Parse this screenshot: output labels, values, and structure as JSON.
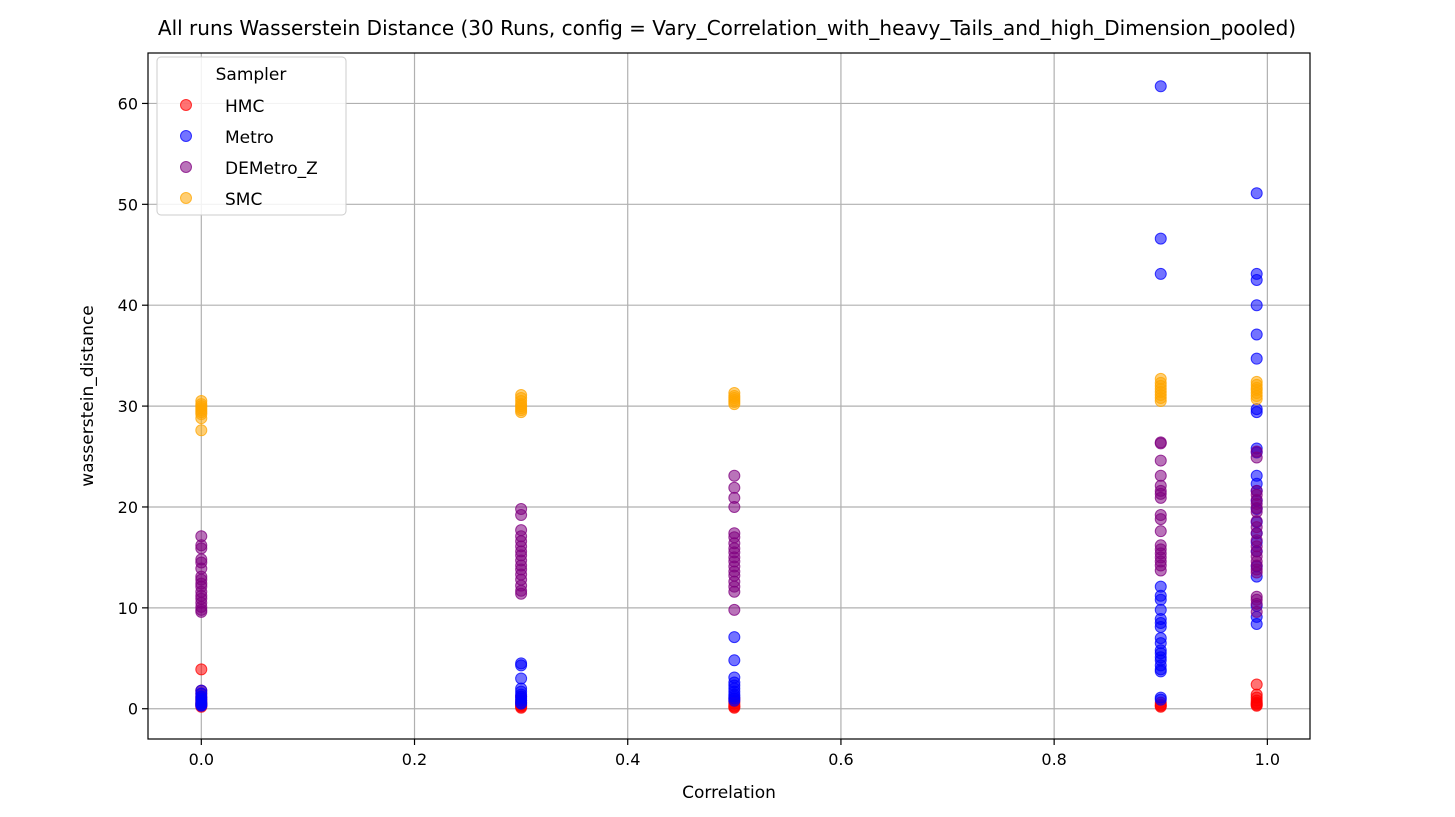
{
  "chart_data": {
    "type": "scatter",
    "title": "All runs Wasserstein Distance (30 Runs, config = Vary_Correlation_with_heavy_Tails_and_high_Dimension_pooled)",
    "xlabel": "Correlation",
    "ylabel": "wasserstein_distance",
    "xlim": [
      -0.05,
      1.04
    ],
    "ylim": [
      -3,
      65
    ],
    "xticks": [
      0.0,
      0.2,
      0.4,
      0.6,
      0.8,
      1.0
    ],
    "xtick_labels": [
      "0.0",
      "0.2",
      "0.4",
      "0.6",
      "0.8",
      "1.0"
    ],
    "yticks": [
      0,
      10,
      20,
      30,
      40,
      50,
      60
    ],
    "ytick_labels": [
      "0",
      "10",
      "20",
      "30",
      "40",
      "50",
      "60"
    ],
    "grid": true,
    "legend": {
      "title": "Sampler",
      "position": "top-left"
    },
    "series": [
      {
        "name": "HMC",
        "color": "#ff0000",
        "points": [
          {
            "x": 0.0,
            "y": [
              3.9,
              1.8,
              1.5,
              1.2,
              1.0,
              0.8,
              0.6,
              0.5,
              0.4,
              0.3,
              0.2
            ]
          },
          {
            "x": 0.3,
            "y": [
              1.2,
              0.8,
              0.6,
              0.4,
              0.3,
              0.2,
              0.1
            ]
          },
          {
            "x": 0.5,
            "y": [
              1.0,
              0.7,
              0.5,
              0.3,
              0.2,
              0.1
            ]
          },
          {
            "x": 0.9,
            "y": [
              0.6,
              0.4,
              0.3,
              0.2
            ]
          },
          {
            "x": 0.99,
            "y": [
              2.4,
              1.4,
              1.1,
              0.8,
              0.6,
              0.5,
              0.4,
              0.3
            ]
          }
        ]
      },
      {
        "name": "Metro",
        "color": "#0000ff",
        "points": [
          {
            "x": 0.0,
            "y": [
              1.8,
              1.5,
              1.2,
              1.0,
              0.8,
              0.6,
              0.5,
              0.4,
              0.3
            ]
          },
          {
            "x": 0.3,
            "y": [
              4.5,
              4.3,
              3.0,
              2.0,
              1.7,
              1.4,
              1.2,
              1.0,
              0.8,
              0.6,
              0.5
            ]
          },
          {
            "x": 0.5,
            "y": [
              7.1,
              4.8,
              3.1,
              2.6,
              2.3,
              2.0,
              1.7,
              1.4,
              1.2,
              1.0,
              0.8
            ]
          },
          {
            "x": 0.9,
            "y": [
              61.7,
              46.6,
              43.1,
              12.1,
              11.2,
              10.8,
              9.8,
              8.9,
              8.5,
              8.1,
              7.0,
              6.5,
              5.8,
              5.5,
              5.1,
              4.8,
              4.3,
              3.9,
              3.7,
              1.1,
              0.9
            ]
          },
          {
            "x": 0.99,
            "y": [
              51.1,
              43.1,
              42.5,
              40.0,
              37.1,
              34.7,
              29.7,
              29.4,
              25.8,
              25.4,
              23.1,
              22.3,
              21.6,
              20.6,
              19.8,
              18.5,
              17.4,
              16.5,
              15.6,
              14.1,
              13.1,
              10.2,
              9.1,
              8.4
            ]
          }
        ]
      },
      {
        "name": "DEMetro_Z",
        "color": "#800080",
        "points": [
          {
            "x": 0.0,
            "y": [
              17.1,
              16.2,
              15.9,
              14.8,
              14.5,
              13.9,
              13.1,
              12.8,
              12.4,
              12.1,
              11.6,
              11.2,
              10.9,
              10.5,
              10.1,
              9.8,
              9.6
            ]
          },
          {
            "x": 0.3,
            "y": [
              19.8,
              19.2,
              17.7,
              17.1,
              16.6,
              16.1,
              15.6,
              15.2,
              14.7,
              14.2,
              13.8,
              13.3,
              12.8,
              12.2,
              11.7,
              11.4
            ]
          },
          {
            "x": 0.5,
            "y": [
              23.1,
              21.9,
              20.9,
              20.0,
              17.4,
              17.0,
              16.4,
              15.9,
              15.5,
              15.0,
              14.6,
              14.1,
              13.6,
              13.2,
              12.6,
              12.1,
              11.6,
              9.8
            ]
          },
          {
            "x": 0.9,
            "y": [
              26.4,
              26.3,
              24.6,
              23.1,
              22.1,
              21.6,
              21.3,
              20.9,
              19.2,
              18.8,
              17.6,
              16.2,
              15.8,
              15.4,
              15.0,
              14.6,
              14.2,
              13.7
            ]
          },
          {
            "x": 0.99,
            "y": [
              25.5,
              24.9,
              21.6,
              21.2,
              20.7,
              20.3,
              19.9,
              19.5,
              18.6,
              18.0,
              17.4,
              16.7,
              16.1,
              15.6,
              15.1,
              14.6,
              14.2,
              13.8,
              13.5,
              11.1,
              10.8,
              10.4,
              9.6
            ]
          }
        ]
      },
      {
        "name": "SMC",
        "color": "#ffa500",
        "points": [
          {
            "x": 0.0,
            "y": [
              30.5,
              30.2,
              30.0,
              29.8,
              29.6,
              29.4,
              29.2,
              28.8,
              27.6
            ]
          },
          {
            "x": 0.3,
            "y": [
              31.1,
              30.8,
              30.5,
              30.2,
              30.0,
              29.8,
              29.6,
              29.4
            ]
          },
          {
            "x": 0.5,
            "y": [
              31.3,
              31.0,
              30.8,
              30.6,
              30.4,
              30.2
            ]
          },
          {
            "x": 0.9,
            "y": [
              32.7,
              32.3,
              32.0,
              31.7,
              31.4,
              31.1,
              30.8,
              30.5
            ]
          },
          {
            "x": 0.99,
            "y": [
              32.4,
              32.1,
              31.8,
              31.6,
              31.3,
              31.0,
              30.7
            ]
          }
        ]
      }
    ]
  }
}
